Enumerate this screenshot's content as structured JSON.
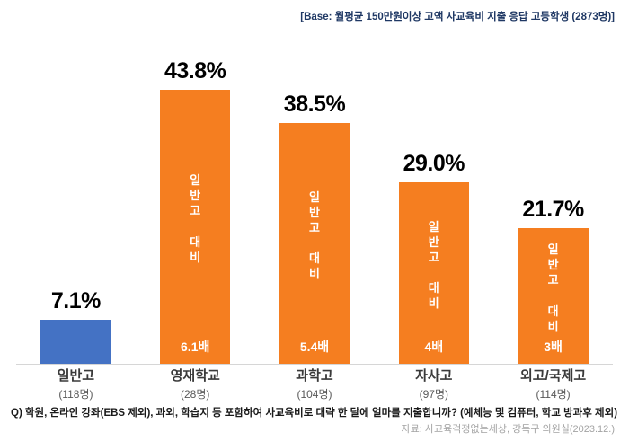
{
  "header": {
    "base_note": "[Base: 월평균 150만원이상 고액 사교육비 지출 응답 고등학생 (2873명)]"
  },
  "chart_data": {
    "type": "bar",
    "title": "[Base: 월평균 150만원이상 고액 사교육비 지출 응답 고등학생 (2873명)]",
    "categories": [
      "일반고",
      "영재학교",
      "과학고",
      "자사고",
      "외고/국제고"
    ],
    "counts": [
      "(118명)",
      "(28명)",
      "(104명)",
      "(97명)",
      "(114명)"
    ],
    "values": [
      7.1,
      43.8,
      38.5,
      29.0,
      21.7
    ],
    "value_labels": [
      "7.1%",
      "43.8%",
      "38.5%",
      "29.0%",
      "21.7%"
    ],
    "inner_labels": [
      "",
      "일반고 대비",
      "일반고 대비",
      "일반고 대비",
      "일반고 대비"
    ],
    "multipliers": [
      "",
      "6.1배",
      "5.4배",
      "4배",
      "3배"
    ],
    "colors": [
      "#4472C4",
      "#F57E20",
      "#F57E20",
      "#F57E20",
      "#F57E20"
    ],
    "ylim": [
      0,
      45
    ],
    "xlabel": "",
    "ylabel": "",
    "grid": false,
    "legend_position": "none"
  },
  "footer": {
    "question": "Q) 학원, 온라인 강좌(EBS 제외), 과외, 학습지 등 포함하여 사교육비로 대략 한 달에 얼마를 지출합니까?  (예체능 및 컴퓨터, 학교 방과후 제외)",
    "source": "자료: 사교육걱정없는세상, 강득구 의원실(2023.12.)"
  }
}
